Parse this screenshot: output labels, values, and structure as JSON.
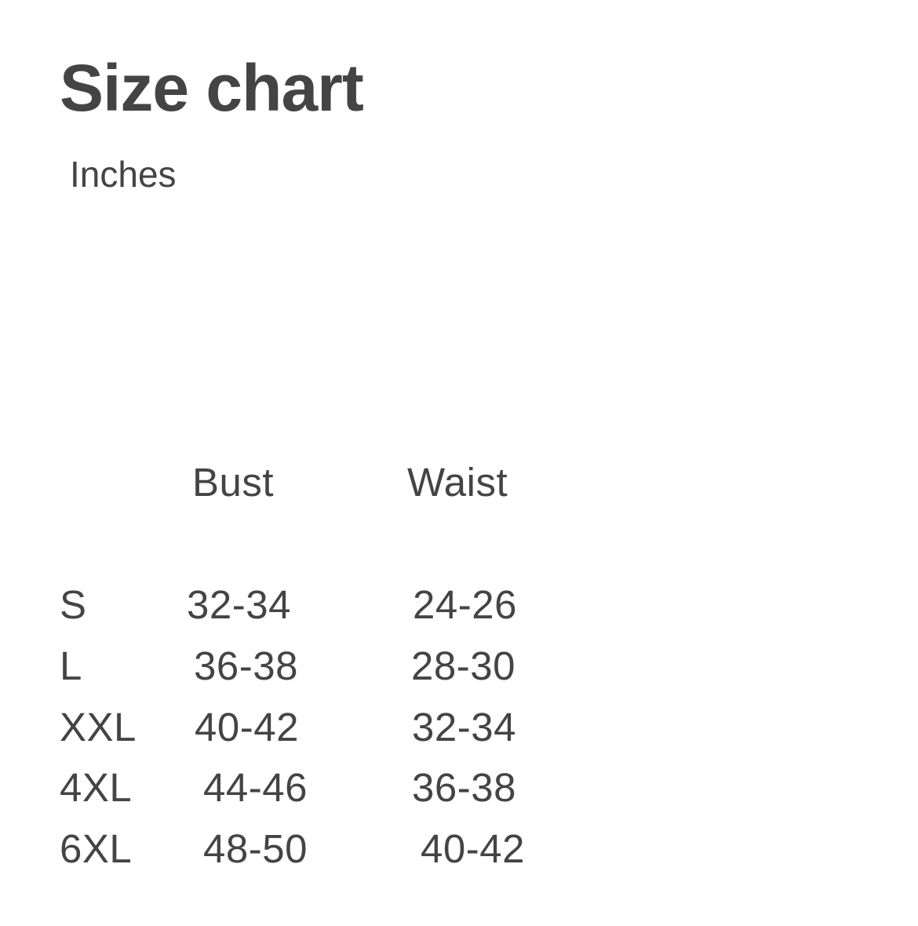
{
  "title": "Size chart",
  "unit": "Inches",
  "headers": {
    "bust": "Bust",
    "waist": "Waist"
  },
  "rows": [
    {
      "size": "S",
      "bust": "32-34",
      "waist": "24-26"
    },
    {
      "size": "L",
      "bust": "36-38",
      "waist": "28-30"
    },
    {
      "size": "XXL",
      "bust": "40-42",
      "waist": "32-34"
    },
    {
      "size": "4XL",
      "bust": "44-46",
      "waist": "36-38"
    },
    {
      "size": "6XL",
      "bust": "48-50",
      "waist": "40-42"
    }
  ],
  "colors": {
    "text": "#444444",
    "background": "#ffffff"
  }
}
